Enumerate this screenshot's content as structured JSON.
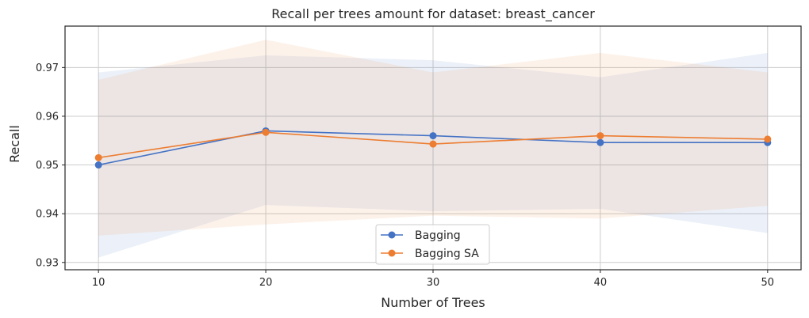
{
  "chart_data": {
    "type": "line",
    "title": "Recall per trees amount for dataset: breast_cancer",
    "xlabel": "Number of Trees",
    "ylabel": "Recall",
    "x": [
      10,
      20,
      30,
      40,
      50
    ],
    "xlim": [
      8,
      52
    ],
    "ylim": [
      0.9285,
      0.9785
    ],
    "xticks": [
      "10",
      "20",
      "30",
      "40",
      "50"
    ],
    "yticks": [
      "0.93",
      "0.94",
      "0.95",
      "0.96",
      "0.97"
    ],
    "grid": true,
    "legend_position": "bottom-center",
    "series": [
      {
        "name": "Bagging",
        "color": "#4472c4",
        "values": [
          0.95,
          0.957,
          0.956,
          0.9546,
          0.9546
        ],
        "upper": [
          0.969,
          0.9725,
          0.9715,
          0.968,
          0.973
        ],
        "lower": [
          0.931,
          0.9418,
          0.9405,
          0.941,
          0.936
        ]
      },
      {
        "name": "Bagging SA",
        "color": "#ed7d31",
        "values": [
          0.9515,
          0.9567,
          0.9543,
          0.956,
          0.9553
        ],
        "upper": [
          0.9675,
          0.9757,
          0.969,
          0.973,
          0.969
        ],
        "lower": [
          0.9355,
          0.9378,
          0.9396,
          0.939,
          0.9416
        ]
      }
    ]
  }
}
